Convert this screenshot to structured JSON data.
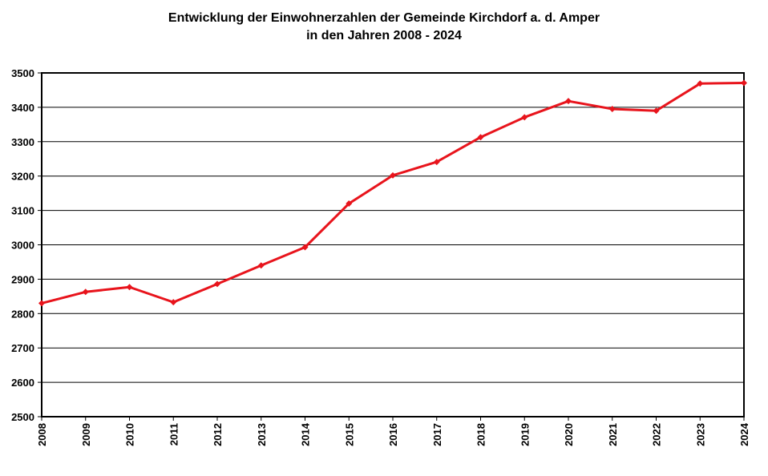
{
  "chart_data": {
    "type": "line",
    "title_lines": [
      "Entwicklung der Einwohnerzahlen der Gemeinde Kirchdorf a. d. Amper",
      "in den Jahren 2008 - 2024"
    ],
    "xlabel": "",
    "ylabel": "",
    "x": [
      "2008",
      "2009",
      "2010",
      "2011",
      "2012",
      "2013",
      "2014",
      "2015",
      "2016",
      "2017",
      "2018",
      "2019",
      "2020",
      "2021",
      "2022",
      "2023",
      "2024"
    ],
    "series": [
      {
        "color": "#e8141c",
        "values": [
          2830,
          2863,
          2877,
          2833,
          2886,
          2940,
          2993,
          3120,
          3202,
          3241,
          3313,
          3371,
          3418,
          3395,
          3390,
          3469,
          3471
        ]
      }
    ],
    "ylim": [
      2500,
      3500
    ],
    "yticks": [
      2500,
      2600,
      2700,
      2800,
      2900,
      3000,
      3100,
      3200,
      3300,
      3400,
      3500
    ],
    "grid": true,
    "legend": "none"
  }
}
